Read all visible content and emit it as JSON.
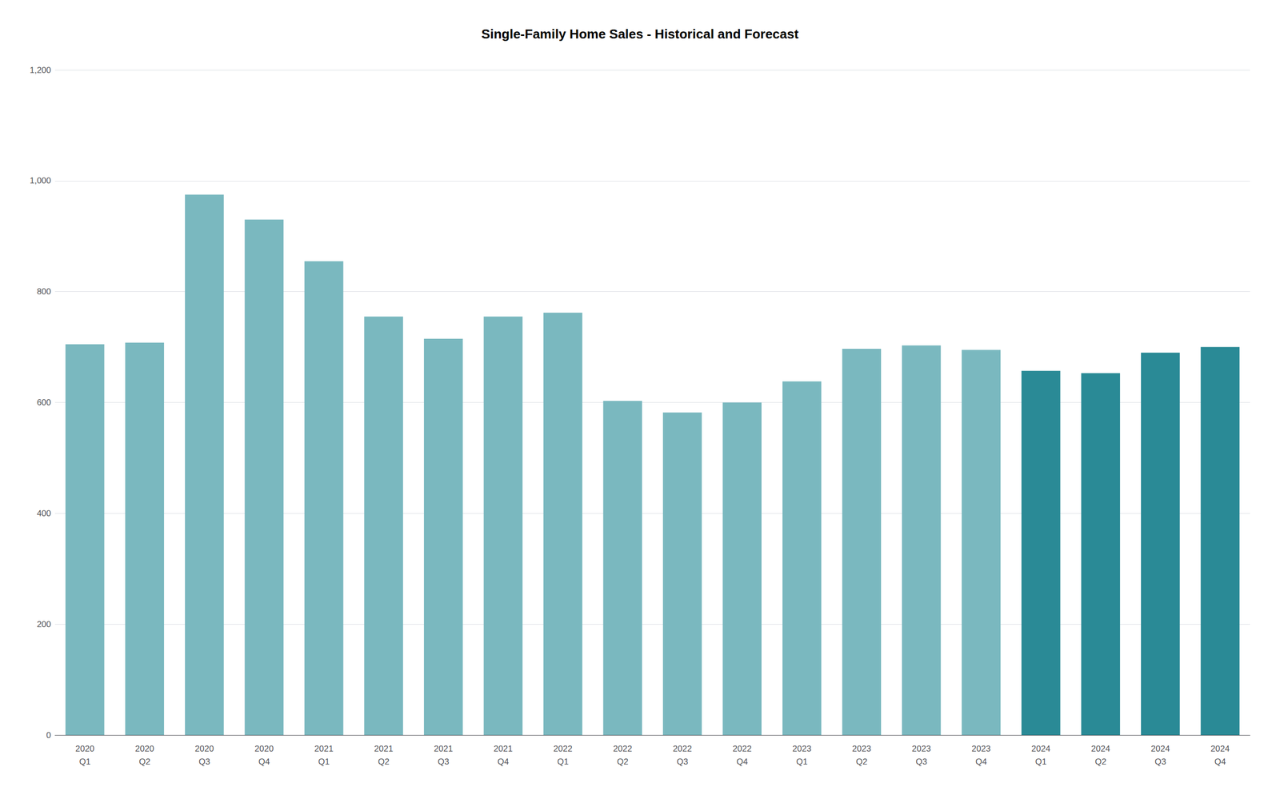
{
  "chart_data": {
    "type": "bar",
    "title": "Single-Family Home Sales - Historical and Forecast",
    "categories": [
      "2020\nQ1",
      "2020\nQ2",
      "2020\nQ3",
      "2020\nQ4",
      "2021\nQ1",
      "2021\nQ2",
      "2021\nQ3",
      "2021\nQ4",
      "2022\nQ1",
      "2022\nQ2",
      "2022\nQ3",
      "2022\nQ4",
      "2023\nQ1",
      "2023\nQ2",
      "2023\nQ3",
      "2023\nQ4",
      "2024\nQ1",
      "2024\nQ2",
      "2024\nQ3",
      "2024\nQ4"
    ],
    "values": [
      705,
      708,
      975,
      930,
      855,
      755,
      715,
      755,
      762,
      603,
      582,
      600,
      638,
      697,
      703,
      695,
      657,
      653,
      690,
      700
    ],
    "colors": [
      "#7ab8bf",
      "#7ab8bf",
      "#7ab8bf",
      "#7ab8bf",
      "#7ab8bf",
      "#7ab8bf",
      "#7ab8bf",
      "#7ab8bf",
      "#7ab8bf",
      "#7ab8bf",
      "#7ab8bf",
      "#7ab8bf",
      "#7ab8bf",
      "#7ab8bf",
      "#7ab8bf",
      "#7ab8bf",
      "#2a8a96",
      "#2a8a96",
      "#2a8a96",
      "#2a8a96"
    ],
    "ylim": [
      0,
      1200
    ],
    "yticks": [
      0,
      200,
      400,
      600,
      800,
      {
        "value": 1000,
        "label": "1,000"
      },
      {
        "value": 1200,
        "label": "1,200"
      }
    ],
    "grid": true
  }
}
